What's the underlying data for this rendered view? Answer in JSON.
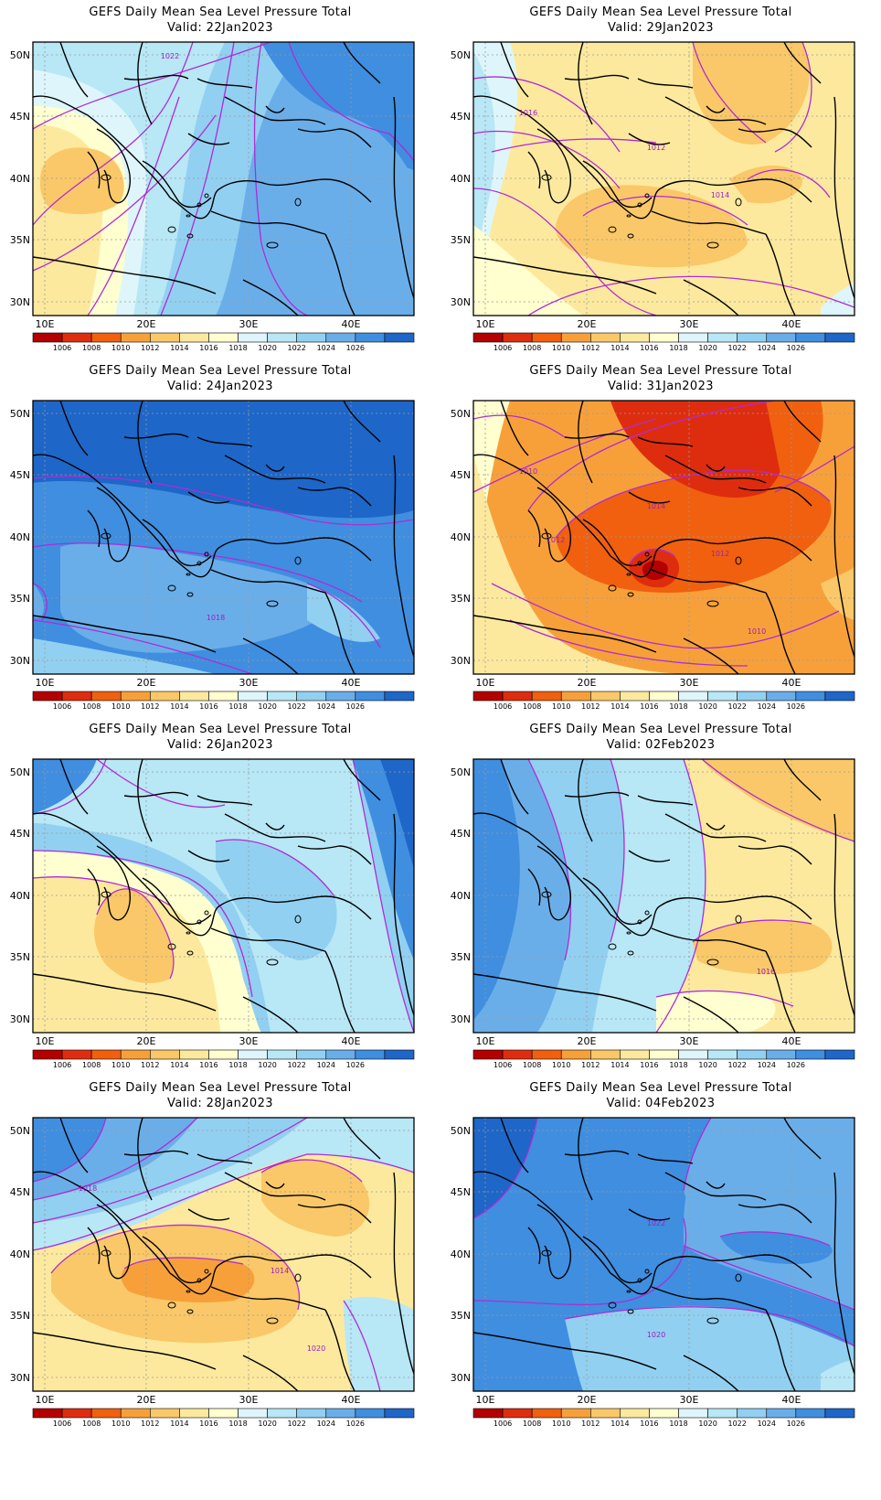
{
  "figure_title": "GEFS Daily Mean Sea Level Pressure Total",
  "colorbar": {
    "ticks": [
      "1006",
      "1008",
      "1010",
      "1012",
      "1014",
      "1016",
      "1018",
      "1020",
      "1022",
      "1024",
      "1026"
    ],
    "colors": [
      "#b30000",
      "#de2d0e",
      "#f0600f",
      "#f7a03a",
      "#fac868",
      "#fde99e",
      "#ffffd0",
      "#def6fb",
      "#b8e7f6",
      "#92d0f1",
      "#6aaee9",
      "#3f8ee0",
      "#1e66c8"
    ]
  },
  "axes": {
    "lon_ticks": [
      "10E",
      "20E",
      "30E",
      "40E"
    ],
    "lat_ticks": [
      "50N",
      "45N",
      "40N",
      "35N",
      "30N"
    ]
  },
  "panels": [
    {
      "valid": "Valid: 22Jan2023",
      "base_color": "#6aaee9",
      "contour_labels": [
        "1022"
      ]
    },
    {
      "valid": "Valid: 29Jan2023",
      "base_color": "#fde99e",
      "contour_labels": [
        "1016",
        "1014",
        "1012"
      ]
    },
    {
      "valid": "Valid: 24Jan2023",
      "base_color": "#3f8ee0",
      "contour_labels": [
        "1018"
      ]
    },
    {
      "valid": "Valid: 31Jan2023",
      "base_color": "#f7a03a",
      "contour_labels": [
        "1012",
        "1010",
        "1010",
        "1012",
        "1014"
      ]
    },
    {
      "valid": "Valid: 26Jan2023",
      "base_color": "#92d0f1",
      "contour_labels": []
    },
    {
      "valid": "Valid: 02Feb2023",
      "base_color": "#b8e7f6",
      "contour_labels": [
        "1016"
      ]
    },
    {
      "valid": "Valid: 28Jan2023",
      "base_color": "#fac868",
      "contour_labels": [
        "1020",
        "1018",
        "1014"
      ]
    },
    {
      "valid": "Valid: 04Feb2023",
      "base_color": "#6aaee9",
      "contour_labels": [
        "1022",
        "1020"
      ]
    }
  ]
}
